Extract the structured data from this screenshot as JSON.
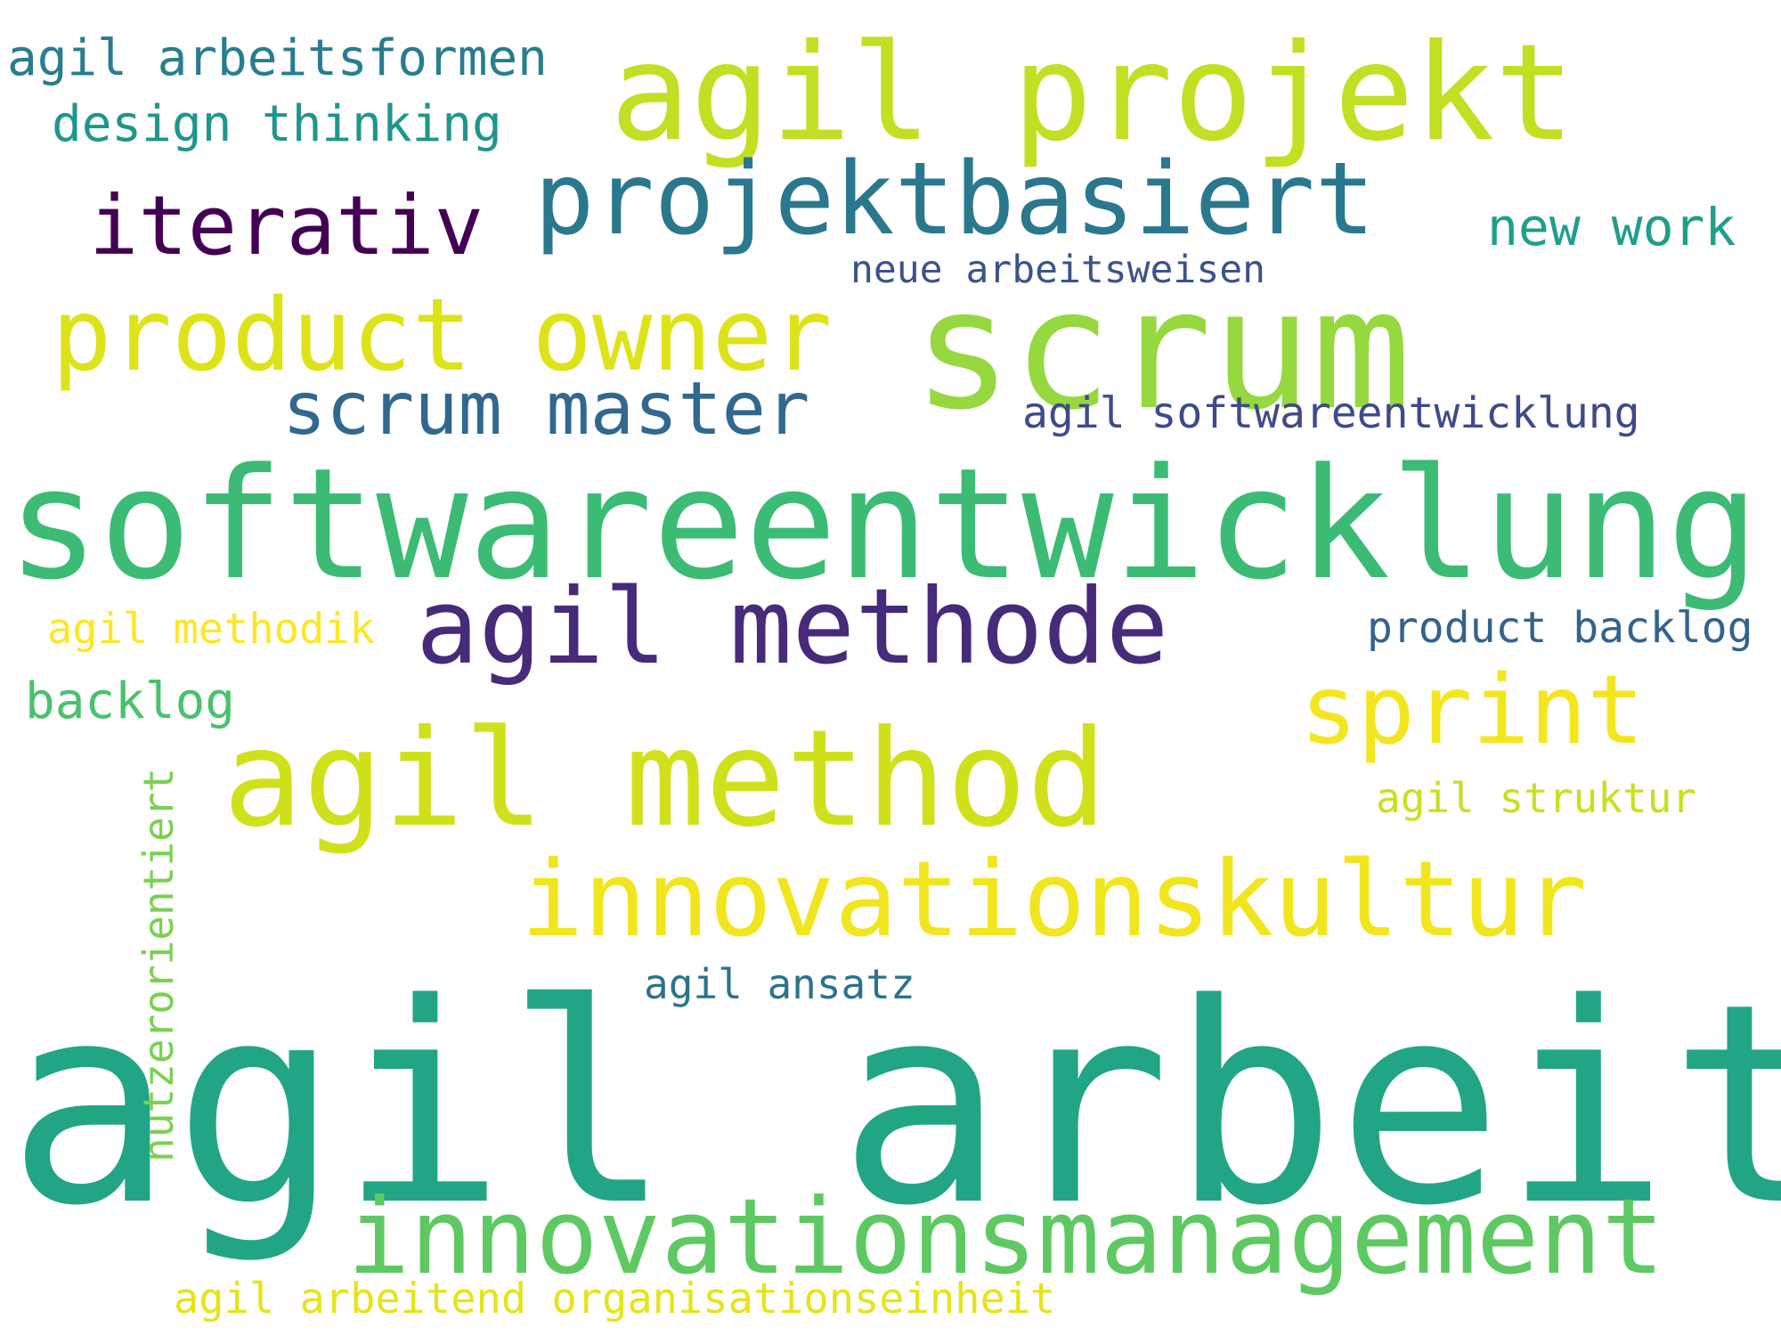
{
  "words": [
    {
      "id": "agil-arbeit",
      "text": "agil arbeit",
      "color": "#21a585"
    },
    {
      "id": "softwareentwicklung",
      "text": "softwareentwicklung",
      "color": "#3cbb75"
    },
    {
      "id": "scrum",
      "text": "scrum",
      "color": "#95d840"
    },
    {
      "id": "agil-projekt",
      "text": "agil projekt",
      "color": "#c2df23"
    },
    {
      "id": "agil-method",
      "text": "agil method",
      "color": "#d0e11c"
    },
    {
      "id": "innovationskultur",
      "text": "innovationskultur",
      "color": "#f1e51d"
    },
    {
      "id": "innovationsmanagement",
      "text": "innovationsmanagement",
      "color": "#5ec962"
    },
    {
      "id": "agil-methode",
      "text": "agil methode",
      "color": "#472a7a"
    },
    {
      "id": "projektbasiert",
      "text": "projektbasiert",
      "color": "#2a788e"
    },
    {
      "id": "product-owner",
      "text": "product owner",
      "color": "#dde318"
    },
    {
      "id": "sprint",
      "text": "sprint",
      "color": "#f4e61e"
    },
    {
      "id": "iterativ",
      "text": "iterativ",
      "color": "#440154"
    },
    {
      "id": "scrum-master",
      "text": "scrum master",
      "color": "#31688e"
    },
    {
      "id": "new-work",
      "text": "new work",
      "color": "#1f9e89"
    },
    {
      "id": "agil-arbeitsformen",
      "text": "agil arbeitsformen",
      "color": "#287d8e"
    },
    {
      "id": "design-thinking",
      "text": "design thinking",
      "color": "#1f968b"
    },
    {
      "id": "backlog",
      "text": "backlog",
      "color": "#4ac16d"
    },
    {
      "id": "product-backlog",
      "text": "product backlog",
      "color": "#33628d"
    },
    {
      "id": "agil-softwareentwicklung",
      "text": "agil softwareentwicklung",
      "color": "#3e4a89"
    },
    {
      "id": "agil-methodik",
      "text": "agil methodik",
      "color": "#fde725"
    },
    {
      "id": "neue-arbeitsweisen",
      "text": "neue arbeitsweisen",
      "color": "#3b528b"
    },
    {
      "id": "agil-struktur",
      "text": "agil struktur",
      "color": "#c8e020"
    },
    {
      "id": "agil-ansatz",
      "text": "agil ansatz",
      "color": "#2c728e"
    },
    {
      "id": "nutzerorientiert",
      "text": "nutzerorientiert",
      "color": "#7ad151"
    },
    {
      "id": "agil-arbeitend-organisationseinheit",
      "text": "agil arbeitend organisationseinheit",
      "color": "#e5e419"
    }
  ]
}
